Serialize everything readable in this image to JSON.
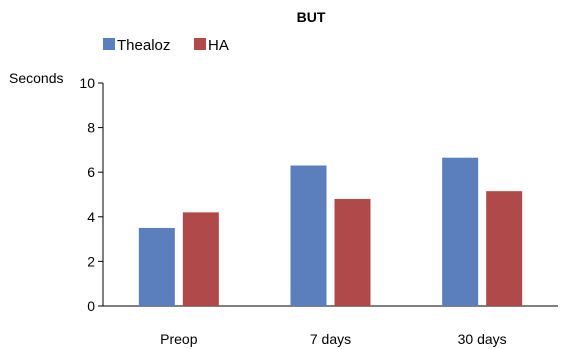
{
  "chart_data": {
    "type": "bar",
    "title": "BUT",
    "ylabel": "Seconds",
    "xlabel": "",
    "categories": [
      "Preop",
      "7 days",
      "30 days"
    ],
    "series": [
      {
        "name": "Thealoz",
        "color": "#5b7fbc",
        "values": [
          3.5,
          6.3,
          6.65
        ]
      },
      {
        "name": "HA",
        "color": "#b04a4a",
        "values": [
          4.2,
          4.8,
          5.15
        ]
      }
    ],
    "ylim": [
      0,
      10
    ],
    "yticks": [
      0,
      2,
      4,
      6,
      8,
      10
    ],
    "grid": false,
    "legend": "top-left"
  }
}
